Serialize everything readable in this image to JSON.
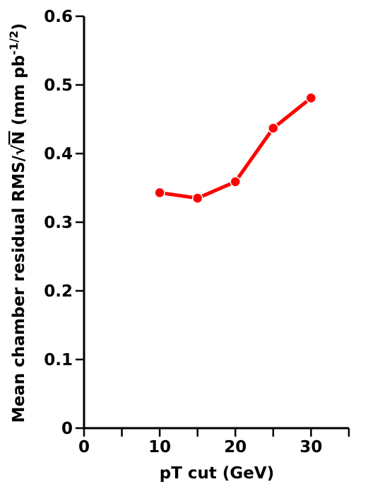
{
  "chart_data": {
    "type": "line",
    "title": "",
    "xlabel": "pT cut (GeV)",
    "ylabel": {
      "prefix": "Mean chamber residual RMS/",
      "radical": "√",
      "radicand": "N",
      "unit_prefix": " (mm pb",
      "unit_exp": "-1/2",
      "unit_suffix": ")"
    },
    "xlim": [
      0,
      35
    ],
    "ylim": [
      0,
      0.6
    ],
    "xticks": [
      0,
      10,
      20,
      30
    ],
    "xticks_minor": [
      5,
      15,
      25,
      35
    ],
    "yticks": [
      0,
      0.1,
      0.2,
      0.3,
      0.4,
      0.5,
      0.6
    ],
    "xtick_labels": [
      "0",
      "10",
      "20",
      "30"
    ],
    "ytick_labels": [
      "0",
      "0.1",
      "0.2",
      "0.3",
      "0.4",
      "0.5",
      "0.6"
    ],
    "grid": false,
    "series": [
      {
        "color": "#ff0000",
        "x": [
          10,
          15,
          20,
          25,
          30
        ],
        "y": [
          0.343,
          0.335,
          0.359,
          0.437,
          0.481
        ]
      }
    ]
  }
}
